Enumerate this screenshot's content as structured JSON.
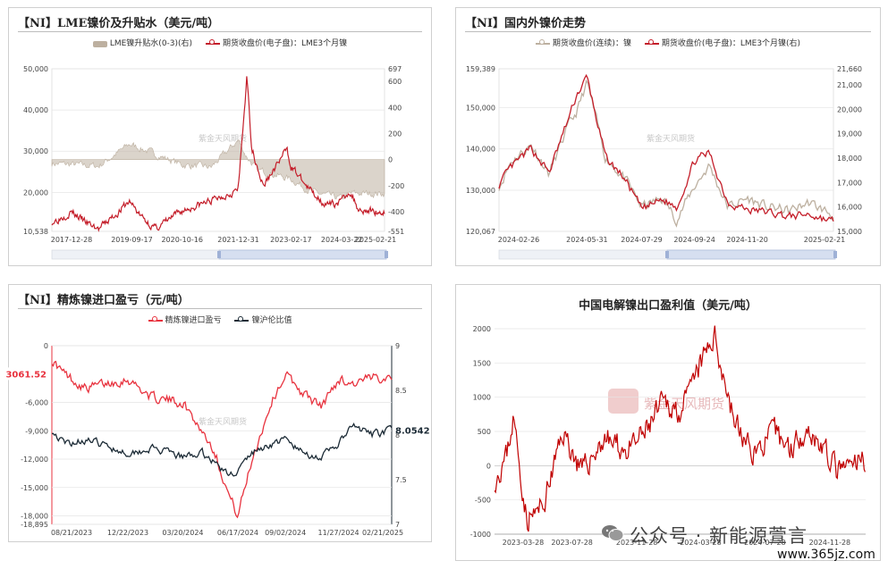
{
  "panels": [
    {
      "title": "【NI】LME镍价及升贴水（美元/吨）",
      "legend": [
        "LME镍升贴水(0-3)(右)",
        "期货收盘价(电子盘)：LME3个月镍"
      ],
      "watermark": "紫金天风期货",
      "left_ticks": [
        "50,000",
        "40,000",
        "30,000",
        "20,000",
        "10,538"
      ],
      "right_ticks": [
        "697",
        "600",
        "400",
        "200",
        "0",
        "-200",
        "-400",
        "-551"
      ],
      "x_ticks": [
        "2017-12-28",
        "2019-09-17",
        "2020-10-16",
        "2021-12-31",
        "2023-02-17",
        "2024-03-22",
        "2025-02-21"
      ]
    },
    {
      "title": "【NI】国内外镍价走势",
      "legend": [
        "期货收盘价(连续)：镍",
        "期货收盘价(电子盘)：LME3个月镍(右)"
      ],
      "watermark": "紫金天风期货",
      "left_ticks": [
        "159,389",
        "150,000",
        "140,000",
        "130,000",
        "120,067"
      ],
      "right_ticks": [
        "21,660",
        "21,000",
        "20,000",
        "19,000",
        "18,000",
        "17,000",
        "16,000",
        "15,000"
      ],
      "x_ticks": [
        "2024-02-26",
        "2024-05-31",
        "2024-07-29",
        "2024-09-24",
        "2024-11-20",
        "2025-02-21"
      ]
    },
    {
      "title": "【NI】精炼镍进口盈亏（元/吨）",
      "legend": [
        "精炼镍进口盈亏",
        "镍沪伦比值"
      ],
      "watermark": "紫金天风期货",
      "left_ticks": [
        "0",
        "-3061.52",
        "-6,000",
        "-9,000",
        "-12,000",
        "-15,000",
        "-18,000",
        "-18,895"
      ],
      "right_ticks": [
        "9",
        "8.5",
        "8.0542",
        "8",
        "7.5",
        "7"
      ],
      "x_ticks": [
        "08/21/2023",
        "12/22/2023",
        "03/20/2024",
        "06/17/2024",
        "09/02/2024",
        "11/27/2024",
        "02/21/2025"
      ]
    },
    {
      "title": "中国电解镍出口盈利值（美元/吨）",
      "watermark": "紫金天风期货",
      "left_ticks": [
        "2000",
        "1500",
        "1000",
        "500",
        "0",
        "-500",
        "-1000"
      ],
      "x_ticks": [
        "2023-03-28",
        "2023-07-28",
        "2023-11-28",
        "2024-03-28",
        "2024-07-28",
        "2024-11-28"
      ]
    }
  ],
  "footer": {
    "wechat_text": "公众号 · 新能源萱言",
    "site": "www.365jz.com"
  },
  "colors": {
    "red": "#c41e2a",
    "navy": "#1c2b36",
    "beige": "#bdb0a0",
    "grey": "#9a9a9a"
  },
  "chart_data": [
    {
      "type": "line",
      "title": "【NI】LME镍价及升贴水（美元/吨）",
      "x_range": [
        "2017-12-28",
        "2025-02-21"
      ],
      "ylim": [
        10538,
        50000
      ],
      "y2lim": [
        -551,
        697
      ],
      "series": [
        {
          "name": "期货收盘价(电子盘)：LME3个月镍",
          "axis": "left",
          "x": [
            "2017-12-28",
            "2018-06-01",
            "2018-10-01",
            "2019-01-01",
            "2019-09-01",
            "2019-12-01",
            "2020-03-20",
            "2020-10-16",
            "2021-03-01",
            "2021-06-01",
            "2021-12-31",
            "2022-03-08",
            "2022-04-15",
            "2022-07-15",
            "2022-11-15",
            "2023-01-15",
            "2023-02-17",
            "2023-07-01",
            "2023-12-01",
            "2024-03-22",
            "2024-05-20",
            "2024-08-01",
            "2024-11-01",
            "2025-02-21"
          ],
          "values": [
            12800,
            15300,
            12500,
            11000,
            17800,
            14000,
            11200,
            15500,
            17000,
            18000,
            20700,
            48000,
            31000,
            21500,
            27500,
            30500,
            26500,
            21000,
            16800,
            17800,
            20500,
            16000,
            15500,
            15200
          ]
        },
        {
          "name": "LME镍升贴水(0-3)(右)",
          "axis": "right",
          "x": [
            "2017-12-28",
            "2019-01-01",
            "2019-09-01",
            "2020-10-16",
            "2021-06-01",
            "2021-12-31",
            "2022-03-08",
            "2022-06-01",
            "2023-02-17",
            "2023-08-01",
            "2024-03-22",
            "2024-06-01",
            "2025-02-21"
          ],
          "values": [
            -30,
            -50,
            120,
            -40,
            -60,
            150,
            20,
            -80,
            -150,
            -250,
            -300,
            -260,
            -260
          ]
        }
      ]
    },
    {
      "type": "line",
      "title": "【NI】国内外镍价走势",
      "x_range": [
        "2024-02-26",
        "2025-02-21"
      ],
      "ylim": [
        120067,
        159389
      ],
      "y2lim": [
        15000,
        21660
      ],
      "series": [
        {
          "name": "期货收盘价(连续)：镍",
          "axis": "left",
          "x": [
            "2024-02-26",
            "2024-03-10",
            "2024-04-01",
            "2024-04-20",
            "2024-05-10",
            "2024-05-20",
            "2024-05-31",
            "2024-06-20",
            "2024-07-10",
            "2024-07-29",
            "2024-08-20",
            "2024-09-05",
            "2024-09-24",
            "2024-10-10",
            "2024-10-30",
            "2024-11-20",
            "2024-12-10",
            "2025-01-05",
            "2025-01-25",
            "2025-02-21"
          ],
          "values": [
            131000,
            137000,
            141000,
            134000,
            145000,
            149000,
            156000,
            138000,
            133000,
            126000,
            128000,
            123000,
            131000,
            136000,
            126000,
            128000,
            126000,
            125000,
            127000,
            124000
          ]
        },
        {
          "name": "期货收盘价(电子盘)：LME3个月镍(右)",
          "axis": "right",
          "x": [
            "2024-02-26",
            "2024-03-10",
            "2024-04-01",
            "2024-04-20",
            "2024-05-10",
            "2024-05-20",
            "2024-05-31",
            "2024-06-20",
            "2024-07-10",
            "2024-07-29",
            "2024-08-20",
            "2024-09-05",
            "2024-09-24",
            "2024-10-10",
            "2024-10-30",
            "2024-11-20",
            "2024-12-10",
            "2025-01-05",
            "2025-01-25",
            "2025-02-21"
          ],
          "values": [
            16900,
            17600,
            18400,
            17400,
            19500,
            20600,
            21300,
            18000,
            17200,
            15900,
            16300,
            16000,
            17900,
            18200,
            16200,
            15900,
            15800,
            15600,
            15700,
            15400
          ]
        }
      ]
    },
    {
      "type": "line",
      "title": "【NI】精炼镍进口盈亏（元/吨）",
      "x_range": [
        "08/21/2023",
        "02/21/2025"
      ],
      "ylim": [
        -18895,
        0
      ],
      "y2lim": [
        7,
        9
      ],
      "series": [
        {
          "name": "精炼镍进口盈亏",
          "axis": "left",
          "x": [
            "08/21/2023",
            "09/10/2023",
            "10/15/2023",
            "12/22/2023",
            "01/30/2024",
            "03/20/2024",
            "04/20/2024",
            "05/10/2024",
            "06/01/2024",
            "06/17/2024",
            "07/10/2024",
            "08/10/2024",
            "09/02/2024",
            "09/30/2024",
            "10/30/2024",
            "11/27/2024",
            "12/20/2024",
            "01/20/2025",
            "02/21/2025"
          ],
          "values": [
            -1500,
            -3000,
            -4500,
            -3500,
            -5500,
            -6000,
            -9000,
            -11000,
            -15500,
            -18000,
            -12000,
            -6000,
            -3000,
            -5000,
            -6500,
            -3500,
            -4000,
            -3500,
            -3061.52
          ]
        },
        {
          "name": "镍沪伦比值",
          "axis": "right",
          "x": [
            "08/21/2023",
            "09/10/2023",
            "10/15/2023",
            "12/22/2023",
            "01/30/2024",
            "03/20/2024",
            "04/20/2024",
            "05/10/2024",
            "06/01/2024",
            "06/17/2024",
            "07/10/2024",
            "08/10/2024",
            "09/02/2024",
            "09/30/2024",
            "10/30/2024",
            "11/27/2024",
            "12/20/2024",
            "01/20/2025",
            "02/21/2025"
          ],
          "values": [
            8.05,
            7.9,
            7.95,
            7.8,
            7.85,
            7.75,
            7.8,
            7.7,
            7.55,
            7.6,
            7.8,
            7.9,
            7.95,
            7.8,
            7.75,
            7.9,
            8.1,
            8.0,
            8.0542
          ]
        }
      ]
    },
    {
      "type": "line",
      "title": "中国电解镍出口盈利值（美元/吨）",
      "x_range": [
        "2023-03-28",
        "2025-02-21"
      ],
      "ylim": [
        -1000,
        2000
      ],
      "series": [
        {
          "name": "",
          "axis": "left",
          "x": [
            "2023-03-20",
            "2023-04-10",
            "2023-04-25",
            "2023-05-20",
            "2023-06-20",
            "2023-07-28",
            "2023-09-01",
            "2023-10-15",
            "2023-11-28",
            "2024-01-01",
            "2024-02-01",
            "2024-03-10",
            "2024-04-15",
            "2024-05-10",
            "2024-05-25",
            "2024-06-15",
            "2024-07-10",
            "2024-07-28",
            "2024-09-01",
            "2024-10-01",
            "2024-11-01",
            "2024-11-28",
            "2025-01-01",
            "2025-02-20"
          ],
          "values": [
            -200,
            100,
            700,
            -800,
            -600,
            500,
            -100,
            400,
            200,
            500,
            900,
            800,
            1500,
            1900,
            1400,
            700,
            300,
            200,
            500,
            250,
            550,
            300,
            -100,
            100
          ]
        }
      ]
    }
  ]
}
